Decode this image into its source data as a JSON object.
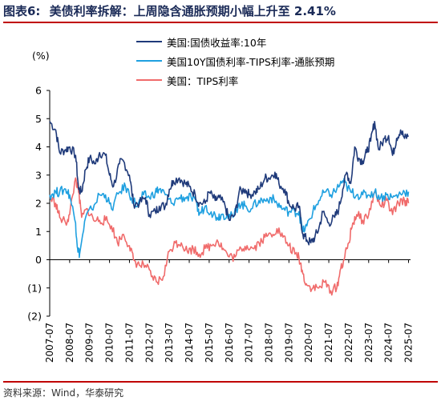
{
  "title": {
    "figure": "图表6:",
    "text": "美债利率拆解：上周隐含通胀预期小幅上升至 2.41%"
  },
  "source": "资料来源：Wind，华泰研究",
  "chart_data": {
    "type": "line",
    "ylabel": "(%)",
    "ylim": [
      -2,
      6
    ],
    "yticks": [
      6,
      5,
      4,
      3,
      2,
      1,
      0,
      -1,
      -2
    ],
    "ytick_labels": [
      "6",
      "5",
      "4",
      "3",
      "2",
      "1",
      "0",
      "(1)",
      "(2)"
    ],
    "xlim": [
      2007.5,
      2025.6
    ],
    "xtick_labels": [
      "2007-07",
      "2008-07",
      "2009-07",
      "2010-07",
      "2011-07",
      "2012-07",
      "2013-07",
      "2014-07",
      "2015-07",
      "2016-07",
      "2017-07",
      "2018-07",
      "2019-07",
      "2020-07",
      "2021-07",
      "2022-07",
      "2023-07",
      "2024-07",
      "2025-07"
    ],
    "legend_position": "top",
    "grid": false,
    "series": [
      {
        "name": "美国:国债收益率:10年",
        "color": "#1f3a7a",
        "x": [
          2007.5,
          2007.8,
          2008.0,
          2008.3,
          2008.5,
          2008.8,
          2008.95,
          2009.1,
          2009.3,
          2009.5,
          2009.8,
          2010.0,
          2010.3,
          2010.5,
          2010.7,
          2011.0,
          2011.2,
          2011.5,
          2011.7,
          2012.0,
          2012.3,
          2012.5,
          2012.8,
          2013.0,
          2013.3,
          2013.5,
          2013.7,
          2014.0,
          2014.3,
          2014.5,
          2014.8,
          2015.0,
          2015.3,
          2015.5,
          2015.8,
          2016.0,
          2016.3,
          2016.5,
          2016.8,
          2017.0,
          2017.3,
          2017.5,
          2017.8,
          2018.0,
          2018.3,
          2018.5,
          2018.8,
          2019.0,
          2019.3,
          2019.5,
          2019.8,
          2020.0,
          2020.2,
          2020.4,
          2020.6,
          2020.8,
          2021.0,
          2021.2,
          2021.5,
          2021.8,
          2022.0,
          2022.2,
          2022.4,
          2022.6,
          2022.8,
          2023.0,
          2023.2,
          2023.4,
          2023.6,
          2023.8,
          2024.0,
          2024.3,
          2024.5,
          2024.7,
          2024.9,
          2025.1,
          2025.3,
          2025.5
        ],
        "values": [
          4.9,
          4.6,
          3.8,
          3.9,
          4.0,
          3.7,
          2.5,
          2.4,
          3.2,
          3.6,
          3.4,
          3.8,
          3.7,
          3.0,
          2.6,
          3.4,
          3.5,
          3.0,
          2.0,
          2.0,
          2.2,
          1.6,
          1.7,
          1.9,
          1.9,
          2.5,
          2.8,
          2.9,
          2.7,
          2.6,
          2.3,
          2.0,
          2.0,
          2.4,
          2.1,
          2.2,
          1.9,
          1.4,
          1.6,
          2.4,
          2.5,
          2.3,
          2.4,
          2.5,
          2.9,
          2.9,
          3.1,
          2.7,
          2.5,
          2.0,
          1.8,
          1.9,
          0.9,
          0.7,
          0.6,
          0.8,
          1.1,
          1.7,
          1.3,
          1.5,
          1.8,
          2.5,
          3.1,
          2.7,
          4.0,
          3.6,
          3.5,
          3.8,
          4.2,
          4.9,
          3.9,
          4.3,
          4.4,
          3.7,
          4.3,
          4.6,
          4.3,
          4.4
        ]
      },
      {
        "name": "美国10Y国债利率-TIPS利率-通胀预期",
        "color": "#1fa0e0",
        "x": [
          2007.5,
          2007.8,
          2008.0,
          2008.3,
          2008.5,
          2008.8,
          2008.9,
          2009.0,
          2009.3,
          2009.6,
          2010.0,
          2010.3,
          2010.6,
          2011.0,
          2011.3,
          2011.6,
          2011.9,
          2012.2,
          2012.5,
          2012.8,
          2013.0,
          2013.3,
          2013.6,
          2014.0,
          2014.3,
          2014.6,
          2014.9,
          2015.0,
          2015.3,
          2015.6,
          2015.9,
          2016.1,
          2016.4,
          2016.7,
          2017.0,
          2017.3,
          2017.6,
          2018.0,
          2018.3,
          2018.6,
          2018.9,
          2019.2,
          2019.5,
          2019.8,
          2020.0,
          2020.2,
          2020.4,
          2020.7,
          2021.0,
          2021.3,
          2021.6,
          2021.9,
          2022.2,
          2022.4,
          2022.6,
          2022.9,
          2023.2,
          2023.5,
          2023.8,
          2024.1,
          2024.4,
          2024.7,
          2025.0,
          2025.3,
          2025.5
        ],
        "values": [
          2.3,
          2.4,
          2.4,
          2.5,
          2.3,
          1.3,
          0.4,
          0.2,
          1.5,
          1.8,
          2.3,
          2.3,
          1.8,
          2.4,
          2.6,
          2.2,
          1.9,
          2.3,
          2.2,
          2.4,
          2.5,
          2.3,
          2.0,
          2.2,
          2.2,
          2.2,
          1.9,
          1.6,
          1.9,
          1.7,
          1.5,
          1.6,
          1.6,
          1.5,
          2.0,
          1.9,
          1.8,
          2.1,
          2.1,
          2.2,
          2.0,
          1.8,
          1.7,
          1.7,
          1.7,
          1.0,
          1.2,
          1.7,
          2.1,
          2.4,
          2.3,
          2.5,
          2.8,
          2.6,
          2.4,
          2.3,
          2.3,
          2.3,
          2.4,
          2.2,
          2.3,
          2.2,
          2.3,
          2.4,
          2.41
        ]
      },
      {
        "name": "美国：TIPS利率",
        "color": "#f06b6b",
        "x": [
          2007.5,
          2007.8,
          2008.0,
          2008.3,
          2008.5,
          2008.8,
          2008.95,
          2009.1,
          2009.4,
          2009.7,
          2010.0,
          2010.3,
          2010.6,
          2010.9,
          2011.2,
          2011.5,
          2011.7,
          2012.0,
          2012.3,
          2012.6,
          2012.9,
          2013.2,
          2013.5,
          2013.8,
          2014.1,
          2014.4,
          2014.7,
          2015.0,
          2015.3,
          2015.6,
          2015.9,
          2016.2,
          2016.5,
          2016.8,
          2017.1,
          2017.4,
          2017.7,
          2018.0,
          2018.3,
          2018.6,
          2018.9,
          2019.2,
          2019.5,
          2019.8,
          2020.0,
          2020.2,
          2020.4,
          2020.7,
          2021.0,
          2021.3,
          2021.6,
          2021.9,
          2022.1,
          2022.3,
          2022.5,
          2022.7,
          2022.9,
          2023.2,
          2023.5,
          2023.8,
          2024.1,
          2024.4,
          2024.7,
          2025.0,
          2025.3,
          2025.5
        ],
        "values": [
          2.2,
          2.0,
          1.5,
          1.3,
          1.6,
          2.9,
          2.4,
          1.5,
          1.8,
          1.4,
          1.4,
          1.4,
          1.2,
          0.6,
          0.9,
          0.5,
          0.0,
          -0.2,
          -0.2,
          -0.6,
          -0.8,
          -0.6,
          0.3,
          0.6,
          0.6,
          0.3,
          0.4,
          0.2,
          0.4,
          0.5,
          0.7,
          0.4,
          0.1,
          0.1,
          0.4,
          0.5,
          0.4,
          0.6,
          0.8,
          0.9,
          1.1,
          0.8,
          0.5,
          0.2,
          0.1,
          -0.5,
          -0.9,
          -1.0,
          -1.0,
          -0.8,
          -1.1,
          -1.0,
          -0.3,
          0.1,
          0.6,
          1.3,
          1.6,
          1.4,
          1.6,
          2.4,
          1.9,
          2.1,
          1.6,
          2.0,
          2.1,
          2.0
        ]
      }
    ]
  }
}
